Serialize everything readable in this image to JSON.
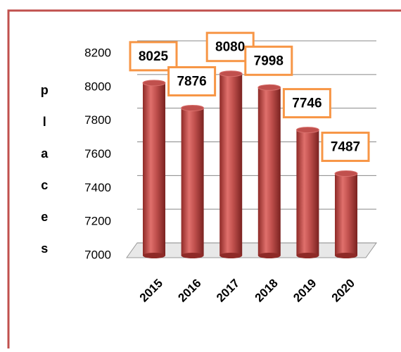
{
  "chart_data": {
    "type": "bar",
    "ylabel": "places",
    "categories": [
      "2015",
      "2016",
      "2017",
      "2018",
      "2019",
      "2020"
    ],
    "values": [
      8025,
      7876,
      8080,
      7998,
      7746,
      7487
    ],
    "color": "#c0504d",
    "label_border_color": "#f79646",
    "ylim": [
      7000,
      8200
    ],
    "yticks": [
      7000,
      7200,
      7400,
      7600,
      7800,
      8000,
      8200
    ],
    "grid": true
  }
}
